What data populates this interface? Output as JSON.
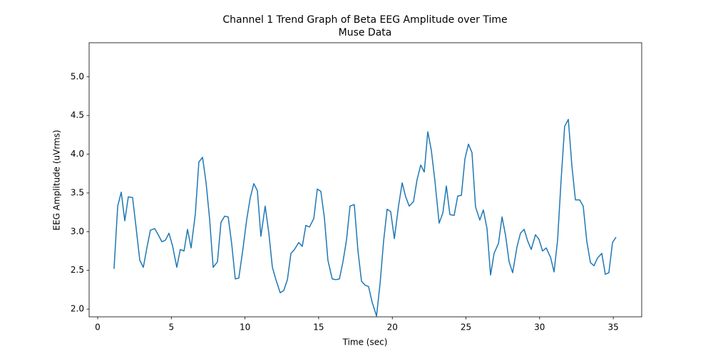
{
  "chart_data": {
    "type": "line",
    "title": "Channel 1 Trend Graph of Beta EEG Amplitude over Time",
    "subtitle": "Muse Data",
    "x_label": "Time (sec)",
    "y_label": "EEG Amplitude (uVrms)",
    "color": "#1f77b4",
    "x": [
      1.11,
      1.36,
      1.6,
      1.84,
      2.08,
      2.37,
      2.61,
      2.86,
      3.1,
      3.34,
      3.58,
      3.87,
      4.11,
      4.36,
      4.6,
      4.84,
      5.08,
      5.37,
      5.61,
      5.86,
      6.1,
      6.34,
      6.63,
      6.87,
      7.12,
      7.36,
      7.6,
      7.84,
      8.13,
      8.37,
      8.62,
      8.86,
      9.1,
      9.34,
      9.58,
      9.87,
      10.12,
      10.36,
      10.6,
      10.84,
      11.08,
      11.37,
      11.62,
      11.86,
      12.1,
      12.39,
      12.63,
      12.88,
      13.12,
      13.36,
      13.65,
      13.89,
      14.13,
      14.38,
      14.67,
      14.91,
      15.15,
      15.39,
      15.63,
      15.92,
      16.17,
      16.41,
      16.65,
      16.89,
      17.13,
      17.42,
      17.67,
      17.91,
      18.15,
      18.39,
      18.63,
      18.93,
      19.17,
      19.41,
      19.65,
      19.89,
      20.14,
      20.43,
      20.67,
      20.91,
      21.15,
      21.44,
      21.68,
      21.93,
      22.17,
      22.41,
      22.65,
      22.89,
      23.18,
      23.43,
      23.67,
      23.91,
      24.2,
      24.44,
      24.69,
      24.93,
      25.17,
      25.41,
      25.65,
      25.94,
      26.18,
      26.43,
      26.67,
      26.91,
      27.21,
      27.45,
      27.69,
      27.93,
      28.17,
      28.46,
      28.7,
      28.95,
      29.19,
      29.43,
      29.72,
      29.96,
      30.2,
      30.45,
      30.74,
      30.98,
      31.22,
      31.46,
      31.7,
      31.95,
      32.19,
      32.43,
      32.72,
      32.96,
      33.2,
      33.45,
      33.69,
      33.93,
      34.22,
      34.46,
      34.7,
      34.95,
      35.19
    ],
    "values": [
      2.52,
      3.33,
      3.51,
      3.14,
      3.45,
      3.44,
      3.05,
      2.63,
      2.54,
      2.79,
      3.02,
      3.04,
      2.96,
      2.87,
      2.89,
      2.98,
      2.82,
      2.54,
      2.77,
      2.75,
      3.03,
      2.79,
      3.23,
      3.9,
      3.96,
      3.63,
      3.16,
      2.54,
      2.61,
      3.12,
      3.2,
      3.19,
      2.84,
      2.39,
      2.4,
      2.79,
      3.16,
      3.44,
      3.62,
      3.53,
      2.94,
      3.33,
      2.98,
      2.54,
      2.38,
      2.21,
      2.24,
      2.38,
      2.72,
      2.77,
      2.86,
      2.81,
      3.08,
      3.06,
      3.17,
      3.55,
      3.52,
      3.18,
      2.63,
      2.39,
      2.38,
      2.39,
      2.61,
      2.89,
      3.33,
      3.35,
      2.75,
      2.36,
      2.31,
      2.29,
      2.09,
      1.91,
      2.33,
      2.88,
      3.29,
      3.26,
      2.91,
      3.34,
      3.63,
      3.45,
      3.33,
      3.39,
      3.67,
      3.86,
      3.77,
      4.29,
      4.05,
      3.66,
      3.11,
      3.24,
      3.59,
      3.22,
      3.21,
      3.46,
      3.47,
      3.94,
      4.13,
      4.02,
      3.32,
      3.15,
      3.28,
      3.04,
      2.44,
      2.72,
      2.85,
      3.19,
      2.95,
      2.61,
      2.47,
      2.8,
      2.98,
      3.03,
      2.88,
      2.77,
      2.96,
      2.9,
      2.75,
      2.79,
      2.67,
      2.48,
      2.89,
      3.67,
      4.36,
      4.45,
      3.85,
      3.41,
      3.41,
      3.33,
      2.88,
      2.6,
      2.56,
      2.66,
      2.72,
      2.45,
      2.47,
      2.86,
      2.93
    ],
    "xlim": [
      -0.58,
      36.93
    ],
    "ylim": [
      1.9,
      5.44
    ],
    "xticks": [
      0,
      5,
      10,
      15,
      20,
      25,
      30,
      35
    ],
    "yticks": [
      {
        "value": 2.0,
        "label": "2.0"
      },
      {
        "value": 2.5,
        "label": "2.5"
      },
      {
        "value": 3.0,
        "label": "3.0"
      },
      {
        "value": 3.5,
        "label": "3.5"
      },
      {
        "value": 4.0,
        "label": "4.0"
      },
      {
        "value": 4.5,
        "label": "4.5"
      },
      {
        "value": 5.0,
        "label": "5.0"
      }
    ],
    "grid": false
  }
}
